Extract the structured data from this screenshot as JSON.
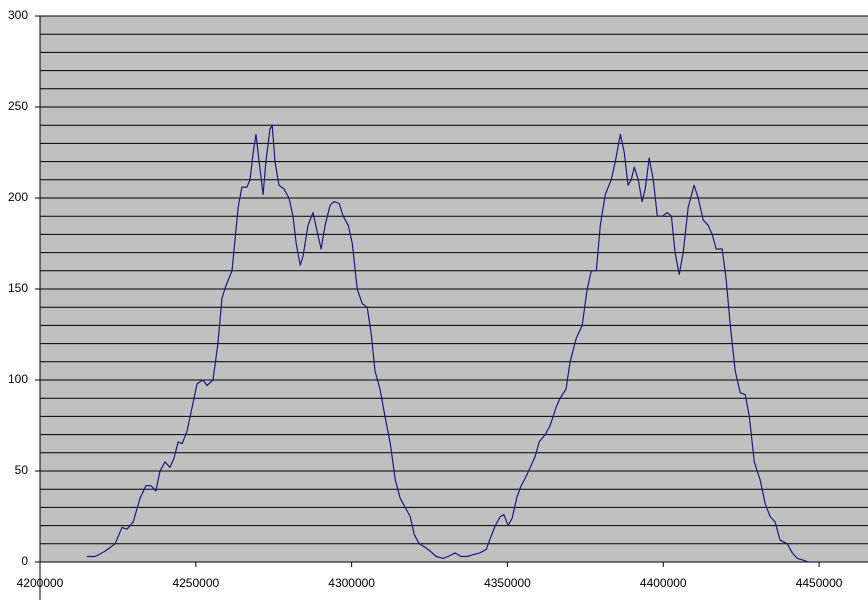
{
  "chart_data": {
    "type": "line",
    "x": [
      4215100,
      4217700,
      4220900,
      4224100,
      4226300,
      4227900,
      4229900,
      4232100,
      4234000,
      4235600,
      4237200,
      4238500,
      4240100,
      4241700,
      4243000,
      4244300,
      4245600,
      4247200,
      4248800,
      4250400,
      4252300,
      4253600,
      4255500,
      4257100,
      4258400,
      4259700,
      4261600,
      4263600,
      4264800,
      4266400,
      4267400,
      4268400,
      4269300,
      4270300,
      4271600,
      4272500,
      4273800,
      4274500,
      4275400,
      4276700,
      4278300,
      4279900,
      4281200,
      4282200,
      4283500,
      4284400,
      4286000,
      4287600,
      4288900,
      4290200,
      4291500,
      4293100,
      4294400,
      4296000,
      4297300,
      4298900,
      4300200,
      4301800,
      4303400,
      4305000,
      4306300,
      4307500,
      4309100,
      4310700,
      4312400,
      4314000,
      4315600,
      4317200,
      4318800,
      4320100,
      4321700,
      4323600,
      4325200,
      4327100,
      4329400,
      4331000,
      4333200,
      4335100,
      4337100,
      4339000,
      4341200,
      4343200,
      4344500,
      4346100,
      4347700,
      4348900,
      4350200,
      4351500,
      4353100,
      4354400,
      4356000,
      4357600,
      4358900,
      4360200,
      4362100,
      4363700,
      4365600,
      4366900,
      4368800,
      4370100,
      4372100,
      4374000,
      4375600,
      4376900,
      4378500,
      4379800,
      4381400,
      4383300,
      4384600,
      4386200,
      4387500,
      4388700,
      4389700,
      4390700,
      4392000,
      4393200,
      4394200,
      4395500,
      4396800,
      4398100,
      4399700,
      4401300,
      4402600,
      4403800,
      4405100,
      4406400,
      4408000,
      4409900,
      4411200,
      4412800,
      4414400,
      4415700,
      4417000,
      4418900,
      4420200,
      4421500,
      4423100,
      4424700,
      4426300,
      4427600,
      4429200,
      4431100,
      4432700,
      4434300,
      4435900,
      4437500,
      4439800,
      4441400,
      4443000,
      4444900,
      4446500,
      4448100
    ],
    "series": [
      {
        "color": "#1a1a80",
        "values": [
          3,
          3,
          6,
          10,
          19,
          18,
          22,
          35,
          42,
          42,
          39,
          50,
          55,
          52,
          57,
          66,
          65,
          72,
          85,
          98,
          100,
          97,
          100,
          120,
          145,
          152,
          160,
          195,
          206,
          206,
          210,
          225,
          235,
          220,
          202,
          220,
          238,
          240,
          220,
          207,
          205,
          200,
          190,
          175,
          163,
          168,
          185,
          192,
          182,
          172,
          185,
          196,
          198,
          197,
          190,
          185,
          175,
          150,
          142,
          140,
          125,
          105,
          95,
          80,
          65,
          45,
          35,
          30,
          25,
          15,
          10,
          8,
          6,
          3,
          2,
          3,
          5,
          3,
          3,
          4,
          5,
          7,
          13,
          20,
          25,
          26,
          20,
          24,
          36,
          42,
          47,
          53,
          58,
          66,
          70,
          75,
          85,
          90,
          95,
          110,
          123,
          130,
          150,
          160,
          160,
          185,
          202,
          210,
          220,
          235,
          225,
          207,
          210,
          217,
          210,
          198,
          205,
          222,
          210,
          190,
          190,
          192,
          190,
          170,
          158,
          170,
          195,
          207,
          200,
          188,
          185,
          180,
          172,
          172,
          155,
          130,
          105,
          93,
          92,
          80,
          55,
          45,
          32,
          25,
          22,
          12,
          10,
          5,
          2,
          1,
          0,
          0
        ]
      }
    ],
    "xlim": [
      4200000,
      4465700
    ],
    "xticks": [
      4200000,
      4250000,
      4300000,
      4350000,
      4400000,
      4450000
    ],
    "ylim": [
      0,
      300
    ],
    "yticks": [
      0,
      50,
      100,
      150,
      200,
      250,
      300
    ],
    "ygrid": [
      10,
      20,
      30,
      40,
      50,
      60,
      70,
      80,
      90,
      100,
      110,
      120,
      130,
      140,
      150,
      160,
      170,
      180,
      190,
      200,
      210,
      220,
      230,
      240,
      250,
      260,
      270,
      280,
      290,
      300
    ],
    "grid": true
  }
}
